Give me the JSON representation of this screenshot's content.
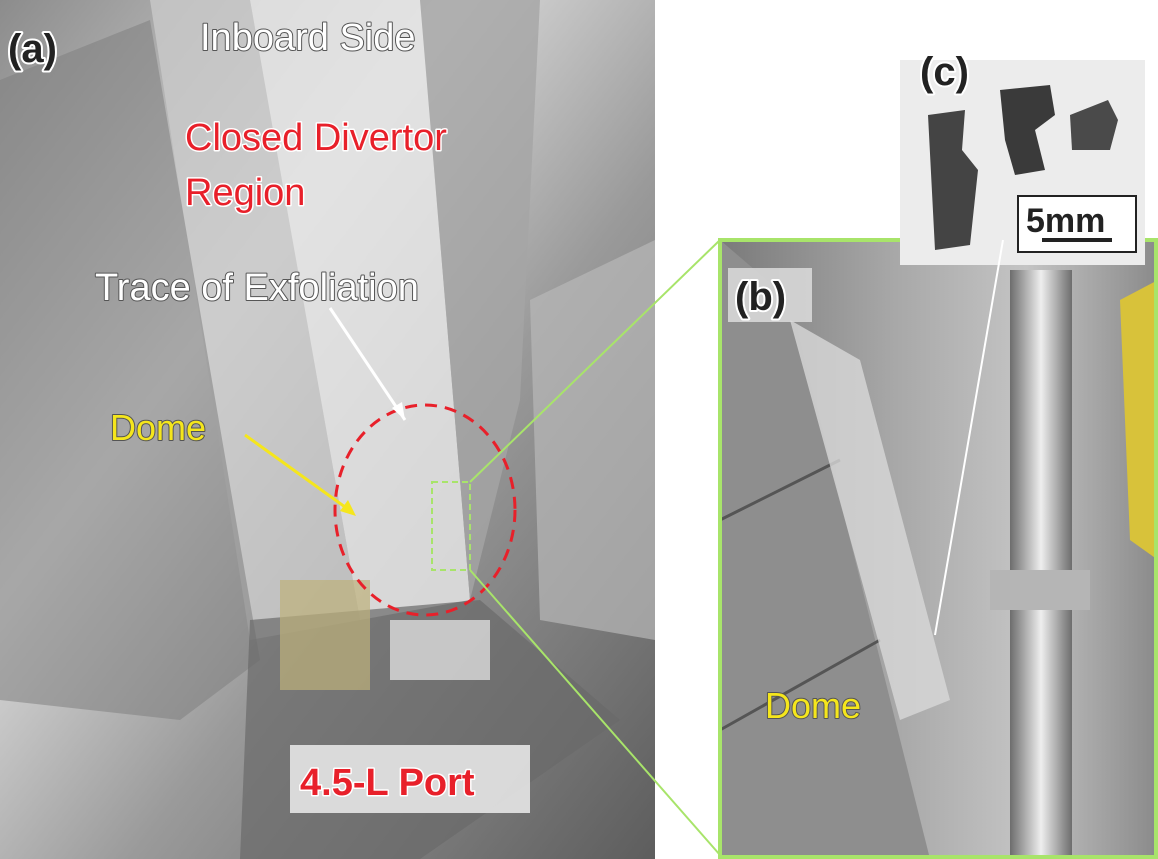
{
  "panel_a": {
    "label": "(a)",
    "inboard_side": "Inboard Side",
    "closed_divertor": [
      "Closed Divertor",
      "Region"
    ],
    "trace": "Trace of Exfoliation",
    "dome": "Dome",
    "port": "4.5-L Port"
  },
  "panel_b": {
    "label": "(b)",
    "dome": "Dome"
  },
  "panel_c": {
    "label": "(c)",
    "scale": "5mm"
  }
}
